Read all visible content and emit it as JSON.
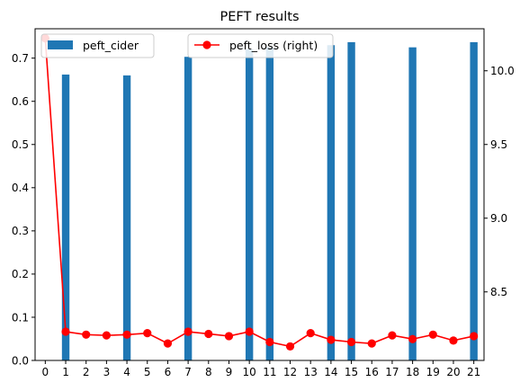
{
  "chart_data": {
    "type": "bar",
    "title": "PEFT results",
    "xlabel": "",
    "ylabel": "",
    "x": [
      0,
      1,
      2,
      3,
      4,
      5,
      6,
      7,
      8,
      9,
      10,
      11,
      12,
      13,
      14,
      15,
      16,
      17,
      18,
      19,
      20,
      21
    ],
    "x_tick_labels": [
      "0",
      "1",
      "2",
      "3",
      "4",
      "5",
      "6",
      "7",
      "8",
      "9",
      "10",
      "11",
      "12",
      "13",
      "14",
      "15",
      "16",
      "17",
      "18",
      "19",
      "20",
      "21"
    ],
    "series": [
      {
        "name": "peft_cider",
        "kind": "bar",
        "axis": "left",
        "color": "#1f77b4",
        "values": [
          null,
          0.662,
          null,
          null,
          0.66,
          null,
          null,
          0.703,
          null,
          null,
          0.72,
          0.725,
          null,
          null,
          0.73,
          0.737,
          null,
          null,
          0.725,
          null,
          null,
          0.737
        ]
      },
      {
        "name": "peft_loss (right)",
        "kind": "line",
        "axis": "right",
        "color": "#ff0000",
        "marker": "circle",
        "values": [
          10.22,
          8.23,
          8.21,
          8.205,
          8.21,
          8.22,
          8.15,
          8.23,
          8.215,
          8.2,
          8.23,
          8.16,
          8.13,
          8.22,
          8.175,
          8.16,
          8.15,
          8.205,
          8.18,
          8.21,
          8.17,
          8.2
        ]
      }
    ],
    "y_left": {
      "ylim": [
        0,
        0.768
      ],
      "ticks": [
        0.0,
        0.1,
        0.2,
        0.3,
        0.4,
        0.5,
        0.6,
        0.7
      ],
      "tick_labels": [
        "0.0",
        "0.1",
        "0.2",
        "0.3",
        "0.4",
        "0.5",
        "0.6",
        "0.7"
      ]
    },
    "y_right": {
      "ylim": [
        8.035,
        10.285
      ],
      "ticks": [
        8.5,
        9.0,
        9.5,
        10.0
      ],
      "tick_labels": [
        "8.5",
        "9.0",
        "9.5",
        "10.0"
      ]
    },
    "grid": false,
    "legends": [
      {
        "placement": "top-left",
        "entries": [
          "peft_cider"
        ]
      },
      {
        "placement": "top-center",
        "entries": [
          "peft_loss (right)"
        ]
      }
    ]
  }
}
